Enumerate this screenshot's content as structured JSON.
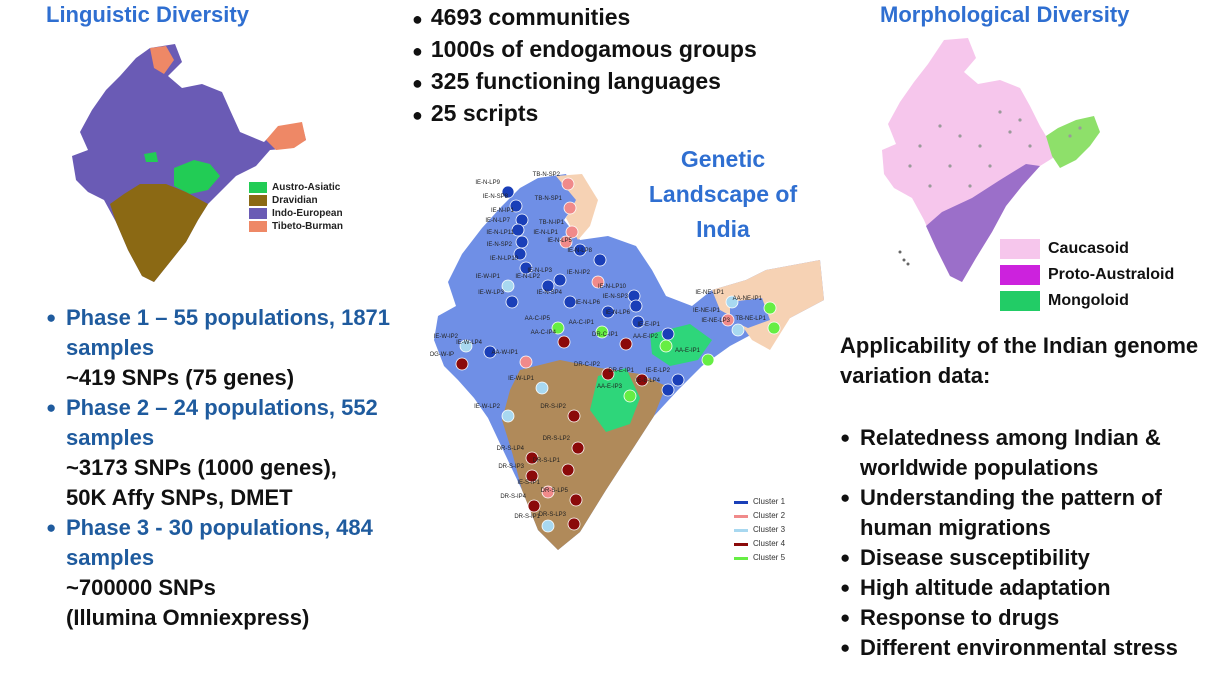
{
  "linguistic": {
    "title": "Linguistic Diversity",
    "legend": [
      {
        "label": "Austro-Asiatic",
        "color": "#22cc55"
      },
      {
        "label": "Dravidian",
        "color": "#8b6914"
      },
      {
        "label": "Indo-European",
        "color": "#6a5bb5"
      },
      {
        "label": "Tibeto-Burman",
        "color": "#ee8866"
      }
    ]
  },
  "stats": [
    "4693 communities",
    "1000s of endogamous groups",
    "325 functioning languages",
    "25 scripts"
  ],
  "morphological": {
    "title": "Morphological Diversity",
    "legend": [
      {
        "label": "Caucasoid",
        "color": "#f6c6ec"
      },
      {
        "label": "Proto-Australoid",
        "color": "#cc22dd"
      },
      {
        "label": "Mongoloid",
        "color": "#22cc66"
      }
    ]
  },
  "genetic": {
    "title_lines": [
      "Genetic",
      "Landscape of",
      "India"
    ],
    "clusters": [
      {
        "label": "Cluster 1",
        "color": "#1a3fb8"
      },
      {
        "label": "Cluster 2",
        "color": "#f08a8a"
      },
      {
        "label": "Cluster 3",
        "color": "#a8d8f0"
      },
      {
        "label": "Cluster 4",
        "color": "#8b0a0a"
      },
      {
        "label": "Cluster 5",
        "color": "#66ee44"
      }
    ],
    "populations": [
      {
        "id": "IE-N-LP9",
        "cluster": 1
      },
      {
        "id": "IE-N-SP8",
        "cluster": 1
      },
      {
        "id": "IE-N-IP1",
        "cluster": 1
      },
      {
        "id": "IE-N-LP7",
        "cluster": 1
      },
      {
        "id": "IE-N-LP11",
        "cluster": 1
      },
      {
        "id": "IE-N-SP2",
        "cluster": 1
      },
      {
        "id": "IE-N-LP10",
        "cluster": 1
      },
      {
        "id": "IE-N-LP3",
        "cluster": 1
      },
      {
        "id": "IE-N-LP2",
        "cluster": 1
      },
      {
        "id": "IE-N-SP4",
        "cluster": 1
      },
      {
        "id": "IE-N-LP6",
        "cluster": 1
      },
      {
        "id": "IE-N-IP2",
        "cluster": 2
      },
      {
        "id": "TB-N-SP2",
        "cluster": 2
      },
      {
        "id": "TB-N-SP1",
        "cluster": 2
      },
      {
        "id": "TB-N-IP1",
        "cluster": 2
      },
      {
        "id": "IE-N-LP1",
        "cluster": 2
      },
      {
        "id": "IE-N-LP5",
        "cluster": 1
      },
      {
        "id": "IE-N-LP8",
        "cluster": 1
      },
      {
        "id": "IE-W-IP1",
        "cluster": 3
      },
      {
        "id": "IE-W-LP3",
        "cluster": 1
      },
      {
        "id": "IE-N-LP10",
        "cluster": 1
      },
      {
        "id": "IE-N-SP3",
        "cluster": 1
      },
      {
        "id": "IE-N-LP6",
        "cluster": 1
      },
      {
        "id": "IE-NE-LP1",
        "cluster": 3
      },
      {
        "id": "AA-NE-IP1",
        "cluster": 5
      },
      {
        "id": "IE-NE-IP1",
        "cluster": 2
      },
      {
        "id": "IE-NE-LP3",
        "cluster": 3
      },
      {
        "id": "TB-NE-LP1",
        "cluster": 5
      },
      {
        "id": "AA-C-IP5",
        "cluster": 5
      },
      {
        "id": "AA-C-IP1",
        "cluster": 5
      },
      {
        "id": "AA-C-IP4",
        "cluster": 4
      },
      {
        "id": "IE-E-IP1",
        "cluster": 1
      },
      {
        "id": "AA-E-IP2",
        "cluster": 5
      },
      {
        "id": "AA-E-IP1",
        "cluster": 5
      },
      {
        "id": "IE-W-IP2",
        "cluster": 3
      },
      {
        "id": "IE-W-LP4",
        "cluster": 1
      },
      {
        "id": "OG-W-IP",
        "cluster": 4
      },
      {
        "id": "AA-W-IP1",
        "cluster": 2
      },
      {
        "id": "DR-C-IP1",
        "cluster": 4
      },
      {
        "id": "DR-C-IP2",
        "cluster": 4
      },
      {
        "id": "DR-E-IP1",
        "cluster": 4
      },
      {
        "id": "IE-E-LP2",
        "cluster": 1
      },
      {
        "id": "IE-E-LP4",
        "cluster": 1
      },
      {
        "id": "AA-E-IP3",
        "cluster": 5
      },
      {
        "id": "IE-W-LP1",
        "cluster": 3
      },
      {
        "id": "IE-W-LP2",
        "cluster": 3
      },
      {
        "id": "DR-S-IP2",
        "cluster": 4
      },
      {
        "id": "DR-S-LP4",
        "cluster": 4
      },
      {
        "id": "DR-S-LP2",
        "cluster": 4
      },
      {
        "id": "DR-S-LP1",
        "cluster": 4
      },
      {
        "id": "DR-S-IP3",
        "cluster": 4
      },
      {
        "id": "IE-S-IP1",
        "cluster": 2
      },
      {
        "id": "DR-S-LP5",
        "cluster": 4
      },
      {
        "id": "DR-S-IP4",
        "cluster": 4
      },
      {
        "id": "DR-S-IP1",
        "cluster": 3
      },
      {
        "id": "DR-S-LP3",
        "cluster": 4
      }
    ]
  },
  "phases": [
    {
      "title": "Phase 1 – 55 populations, 1871 samples",
      "details": [
        "~419 SNPs (75 genes)"
      ]
    },
    {
      "title": "Phase 2 – 24 populations, 552 samples",
      "details": [
        "~3173 SNPs (1000 genes),",
        "50K Affy SNPs, DMET"
      ]
    },
    {
      "title": "Phase 3 - 30 populations, 484 samples",
      "details": [
        "~700000 SNPs",
        "(Illumina Omniexpress)"
      ]
    }
  ],
  "applicability": {
    "title": "Applicability of the Indian genome variation data:",
    "items": [
      "Relatedness among Indian & worldwide populations",
      "Understanding the pattern of human migrations",
      "Disease susceptibility",
      "High altitude adaptation",
      "Response to drugs",
      "Different environmental stress"
    ]
  }
}
